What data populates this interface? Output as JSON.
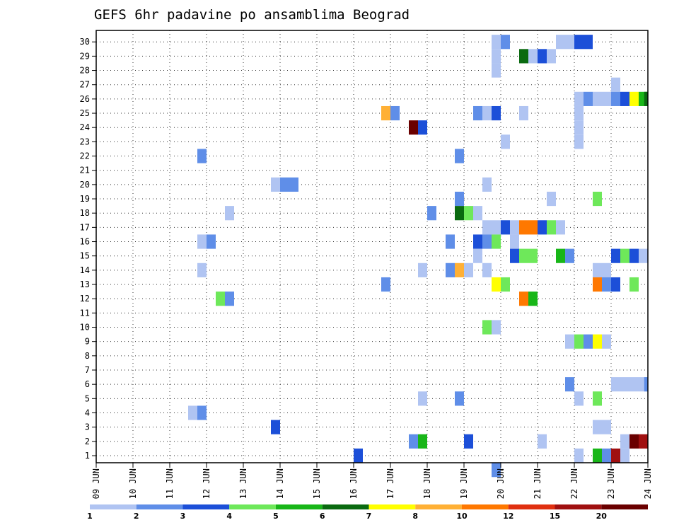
{
  "chart_data": {
    "type": "heatmap",
    "title": "GEFS 6hr padavine po ansamblima Beograd",
    "xlabel": "",
    "ylabel": "",
    "x_tick_labels": [
      "09 JUN",
      "10 JUN",
      "11 JUN",
      "12 JUN",
      "13 JUN",
      "14 JUN",
      "15 JUN",
      "16 JUN",
      "17 JUN",
      "18 JUN",
      "19 JUN",
      "20 JUN",
      "21 JUN",
      "22 JUN",
      "23 JUN",
      "24 JUN"
    ],
    "y_tick_labels": [
      "1",
      "2",
      "3",
      "4",
      "5",
      "6",
      "7",
      "8",
      "9",
      "10",
      "11",
      "12",
      "13",
      "14",
      "15",
      "16",
      "17",
      "18",
      "19",
      "20",
      "21",
      "22",
      "23",
      "24",
      "25",
      "26",
      "27",
      "28",
      "29",
      "30"
    ],
    "x_range_days": [
      0,
      15
    ],
    "y_range": [
      0,
      30
    ],
    "x_step_days": 0.25,
    "grid": true,
    "legend_position": "bottom",
    "legend": {
      "levels": [
        "1",
        "2",
        "3",
        "4",
        "5",
        "6",
        "7",
        "8",
        "10",
        "12",
        "15",
        "20"
      ],
      "colors": [
        "#b0c4f2",
        "#5f8ee8",
        "#1c4fd8",
        "#6ee85a",
        "#18b618",
        "#0a6a10",
        "#ffff00",
        "#ffb035",
        "#ff7800",
        "#e03010",
        "#a01010",
        "#6a0000"
      ]
    },
    "cells": [
      {
        "x": 10.75,
        "y": 30,
        "v": 1
      },
      {
        "x": 11.0,
        "y": 30,
        "v": 2
      },
      {
        "x": 12.5,
        "y": 30,
        "v": 1
      },
      {
        "x": 12.75,
        "y": 30,
        "v": 1
      },
      {
        "x": 13.0,
        "y": 30,
        "v": 3
      },
      {
        "x": 13.25,
        "y": 30,
        "v": 3
      },
      {
        "x": 10.75,
        "y": 29,
        "v": 1
      },
      {
        "x": 11.5,
        "y": 29,
        "v": 6
      },
      {
        "x": 11.75,
        "y": 29,
        "v": 1
      },
      {
        "x": 12.0,
        "y": 29,
        "v": 3
      },
      {
        "x": 12.25,
        "y": 29,
        "v": 1
      },
      {
        "x": 10.75,
        "y": 28,
        "v": 1
      },
      {
        "x": 14.0,
        "y": 27,
        "v": 1
      },
      {
        "x": 13.0,
        "y": 26,
        "v": 1
      },
      {
        "x": 13.25,
        "y": 26,
        "v": 2
      },
      {
        "x": 13.5,
        "y": 26,
        "v": 1
      },
      {
        "x": 13.75,
        "y": 26,
        "v": 1
      },
      {
        "x": 14.0,
        "y": 26,
        "v": 2
      },
      {
        "x": 14.25,
        "y": 26,
        "v": 3
      },
      {
        "x": 14.5,
        "y": 26,
        "v": 7
      },
      {
        "x": 14.75,
        "y": 26,
        "v": 5
      },
      {
        "x": 14.9,
        "y": 26,
        "v": 6
      },
      {
        "x": 7.75,
        "y": 25,
        "v": 8
      },
      {
        "x": 8.0,
        "y": 25,
        "v": 2
      },
      {
        "x": 10.25,
        "y": 25,
        "v": 2
      },
      {
        "x": 10.5,
        "y": 25,
        "v": 1
      },
      {
        "x": 10.75,
        "y": 25,
        "v": 3
      },
      {
        "x": 11.5,
        "y": 25,
        "v": 1
      },
      {
        "x": 13.0,
        "y": 25,
        "v": 1
      },
      {
        "x": 8.5,
        "y": 24,
        "v": 20
      },
      {
        "x": 8.75,
        "y": 24,
        "v": 3
      },
      {
        "x": 13.0,
        "y": 24,
        "v": 1
      },
      {
        "x": 13.0,
        "y": 23,
        "v": 1
      },
      {
        "x": 11.0,
        "y": 23,
        "v": 1
      },
      {
        "x": 2.75,
        "y": 22,
        "v": 2
      },
      {
        "x": 9.75,
        "y": 22,
        "v": 2
      },
      {
        "x": 4.75,
        "y": 20,
        "v": 1
      },
      {
        "x": 5.0,
        "y": 20,
        "v": 2
      },
      {
        "x": 5.25,
        "y": 20,
        "v": 2
      },
      {
        "x": 10.5,
        "y": 20,
        "v": 1
      },
      {
        "x": 9.75,
        "y": 19,
        "v": 2
      },
      {
        "x": 12.25,
        "y": 19,
        "v": 1
      },
      {
        "x": 13.5,
        "y": 19,
        "v": 4
      },
      {
        "x": 3.5,
        "y": 18,
        "v": 1
      },
      {
        "x": 9.0,
        "y": 18,
        "v": 2
      },
      {
        "x": 9.75,
        "y": 18,
        "v": 6
      },
      {
        "x": 10.0,
        "y": 18,
        "v": 4
      },
      {
        "x": 10.25,
        "y": 18,
        "v": 1
      },
      {
        "x": 15.0,
        "y": 18,
        "v": 1
      },
      {
        "x": 10.5,
        "y": 17,
        "v": 1
      },
      {
        "x": 10.75,
        "y": 17,
        "v": 1
      },
      {
        "x": 11.0,
        "y": 17,
        "v": 3
      },
      {
        "x": 11.25,
        "y": 17,
        "v": 1
      },
      {
        "x": 11.5,
        "y": 17,
        "v": 10
      },
      {
        "x": 11.75,
        "y": 17,
        "v": 10
      },
      {
        "x": 12.0,
        "y": 17,
        "v": 3
      },
      {
        "x": 12.25,
        "y": 17,
        "v": 4
      },
      {
        "x": 12.5,
        "y": 17,
        "v": 1
      },
      {
        "x": 2.75,
        "y": 16,
        "v": 1
      },
      {
        "x": 3.0,
        "y": 16,
        "v": 2
      },
      {
        "x": 9.5,
        "y": 16,
        "v": 2
      },
      {
        "x": 10.25,
        "y": 16,
        "v": 3
      },
      {
        "x": 10.5,
        "y": 16,
        "v": 2
      },
      {
        "x": 10.75,
        "y": 16,
        "v": 4
      },
      {
        "x": 11.25,
        "y": 16,
        "v": 1
      },
      {
        "x": 10.25,
        "y": 15,
        "v": 1
      },
      {
        "x": 11.25,
        "y": 15,
        "v": 3
      },
      {
        "x": 11.5,
        "y": 15,
        "v": 4
      },
      {
        "x": 11.75,
        "y": 15,
        "v": 4
      },
      {
        "x": 12.5,
        "y": 15,
        "v": 5
      },
      {
        "x": 12.75,
        "y": 15,
        "v": 2
      },
      {
        "x": 14.0,
        "y": 15,
        "v": 3
      },
      {
        "x": 14.25,
        "y": 15,
        "v": 4
      },
      {
        "x": 14.5,
        "y": 15,
        "v": 3
      },
      {
        "x": 14.75,
        "y": 15,
        "v": 1
      },
      {
        "x": 2.75,
        "y": 14,
        "v": 1
      },
      {
        "x": 8.75,
        "y": 14,
        "v": 1
      },
      {
        "x": 9.5,
        "y": 14,
        "v": 2
      },
      {
        "x": 9.75,
        "y": 14,
        "v": 8
      },
      {
        "x": 10.0,
        "y": 14,
        "v": 1
      },
      {
        "x": 10.5,
        "y": 14,
        "v": 1
      },
      {
        "x": 13.5,
        "y": 14,
        "v": 1
      },
      {
        "x": 13.75,
        "y": 14,
        "v": 1
      },
      {
        "x": 7.75,
        "y": 13,
        "v": 2
      },
      {
        "x": 10.75,
        "y": 13,
        "v": 7
      },
      {
        "x": 11.0,
        "y": 13,
        "v": 4
      },
      {
        "x": 13.5,
        "y": 13,
        "v": 10
      },
      {
        "x": 13.75,
        "y": 13,
        "v": 2
      },
      {
        "x": 14.0,
        "y": 13,
        "v": 3
      },
      {
        "x": 14.5,
        "y": 13,
        "v": 4
      },
      {
        "x": 3.25,
        "y": 12,
        "v": 4
      },
      {
        "x": 3.5,
        "y": 12,
        "v": 2
      },
      {
        "x": 11.5,
        "y": 12,
        "v": 10
      },
      {
        "x": 11.75,
        "y": 12,
        "v": 5
      },
      {
        "x": 10.5,
        "y": 10,
        "v": 4
      },
      {
        "x": 10.75,
        "y": 10,
        "v": 1
      },
      {
        "x": 12.75,
        "y": 9,
        "v": 1
      },
      {
        "x": 13.0,
        "y": 9,
        "v": 4
      },
      {
        "x": 13.25,
        "y": 9,
        "v": 2
      },
      {
        "x": 13.5,
        "y": 9,
        "v": 7
      },
      {
        "x": 13.75,
        "y": 9,
        "v": 1
      },
      {
        "x": 12.75,
        "y": 6,
        "v": 2
      },
      {
        "x": 14.0,
        "y": 6,
        "v": 1
      },
      {
        "x": 14.25,
        "y": 6,
        "v": 1
      },
      {
        "x": 14.5,
        "y": 6,
        "v": 1
      },
      {
        "x": 14.75,
        "y": 6,
        "v": 1
      },
      {
        "x": 14.9,
        "y": 6,
        "v": 2
      },
      {
        "x": 8.75,
        "y": 5,
        "v": 1
      },
      {
        "x": 9.75,
        "y": 5,
        "v": 2
      },
      {
        "x": 13.0,
        "y": 5,
        "v": 1
      },
      {
        "x": 13.5,
        "y": 5,
        "v": 4
      },
      {
        "x": 2.5,
        "y": 4,
        "v": 1
      },
      {
        "x": 2.75,
        "y": 4,
        "v": 2
      },
      {
        "x": 4.75,
        "y": 3,
        "v": 3
      },
      {
        "x": 13.5,
        "y": 3,
        "v": 1
      },
      {
        "x": 13.75,
        "y": 3,
        "v": 1
      },
      {
        "x": 8.5,
        "y": 2,
        "v": 2
      },
      {
        "x": 8.75,
        "y": 2,
        "v": 5
      },
      {
        "x": 10.0,
        "y": 2,
        "v": 3
      },
      {
        "x": 12.0,
        "y": 2,
        "v": 1
      },
      {
        "x": 14.25,
        "y": 2,
        "v": 1
      },
      {
        "x": 14.5,
        "y": 2,
        "v": 20
      },
      {
        "x": 14.75,
        "y": 2,
        "v": 15
      },
      {
        "x": 7.0,
        "y": 1,
        "v": 3
      },
      {
        "x": 13.0,
        "y": 1,
        "v": 1
      },
      {
        "x": 13.5,
        "y": 1,
        "v": 5
      },
      {
        "x": 13.75,
        "y": 1,
        "v": 2
      },
      {
        "x": 14.0,
        "y": 1,
        "v": 15
      },
      {
        "x": 14.25,
        "y": 1,
        "v": 1
      },
      {
        "x": 10.75,
        "y": 0,
        "v": 2
      }
    ]
  }
}
